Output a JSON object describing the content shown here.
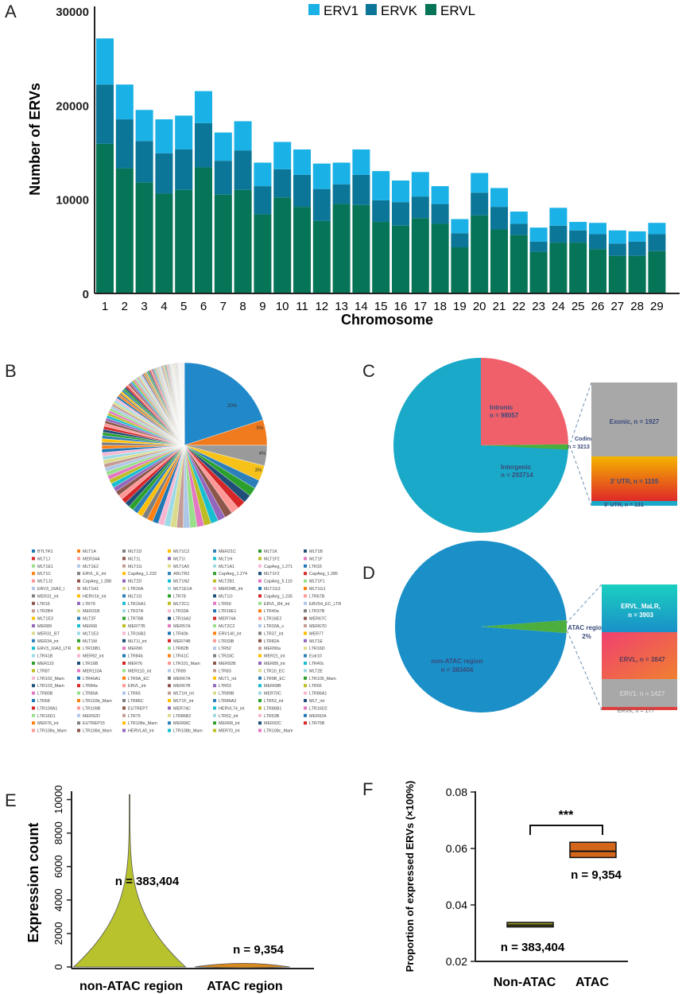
{
  "panels": {
    "a": "A",
    "b": "B",
    "c": "C",
    "d": "D",
    "e": "E",
    "f": "F"
  },
  "colors": {
    "erv1": "#1ab1e6",
    "ervk": "#0b7697",
    "ervl": "#067456",
    "violin_nonatac": "#b8c22c",
    "violin_atac": "#d98a1f",
    "box_nonatac": "#9a9a2a",
    "box_atac": "#d4661c"
  },
  "chart_data": [
    {
      "id": "A",
      "type": "bar",
      "stacked": true,
      "xlabel": "Chromosome",
      "ylabel": "Number of ERVs",
      "ylim": [
        0,
        30000
      ],
      "yticks": [
        "0",
        "10000",
        "20000",
        "30000"
      ],
      "legend_position": "top-right",
      "categories": [
        "1",
        "2",
        "3",
        "4",
        "5",
        "6",
        "7",
        "8",
        "9",
        "10",
        "11",
        "12",
        "13",
        "14",
        "15",
        "16",
        "17",
        "18",
        "19",
        "20",
        "21",
        "22",
        "23",
        "24",
        "25",
        "26",
        "27",
        "28",
        "29"
      ],
      "series": [
        {
          "name": "ERVL",
          "values": [
            15900,
            13300,
            11800,
            10600,
            11000,
            13400,
            10500,
            11000,
            8400,
            10200,
            9200,
            7700,
            9500,
            9400,
            7600,
            7200,
            8000,
            7400,
            4900,
            8300,
            6800,
            6200,
            4400,
            5400,
            5400,
            4700,
            4000,
            4000,
            4500
          ]
        },
        {
          "name": "ERVK",
          "values": [
            6300,
            5200,
            4400,
            4300,
            4300,
            4700,
            3600,
            4200,
            3000,
            3000,
            3400,
            3400,
            2100,
            3200,
            2300,
            2500,
            2300,
            2100,
            1500,
            2400,
            2400,
            1200,
            1100,
            1800,
            1300,
            1600,
            1300,
            1500,
            1800
          ]
        },
        {
          "name": "ERV1",
          "values": [
            4900,
            3700,
            3300,
            3600,
            3600,
            3400,
            3000,
            3100,
            2500,
            2900,
            2700,
            2700,
            2300,
            2700,
            3100,
            2300,
            2600,
            1900,
            1500,
            2100,
            2000,
            1300,
            1500,
            1900,
            900,
            1200,
            1400,
            1100,
            1200
          ]
        }
      ]
    },
    {
      "id": "B",
      "type": "pie",
      "slice_labels": [
        "20%",
        "5%",
        "4%",
        "3%"
      ],
      "legend": [
        "BTLTR1",
        "MLT1A",
        "MLT1D",
        "MLT1C2",
        "MER21C",
        "MLT1K",
        "MLT1B",
        "MLT1J",
        "MER34A",
        "MLT1L",
        "MLT1I",
        "MLT1H",
        "MLT1F2",
        "MLT1F",
        "MLT1E1",
        "MLT1E2",
        "MLT1G",
        "MLT1A0",
        "MLT1A1",
        "CapAeg_1.271",
        "LTR33",
        "MLT1C",
        "ERVL_E_int",
        "CapAeg_1.232",
        "ARLTR2",
        "CapAeg_1.274",
        "MLT1F2",
        "CapAeg_1.285",
        "MLT1J2",
        "CapAeg_1.288",
        "MLT2D",
        "MLT1N2",
        "MLT2B1",
        "CapAeg_5.110",
        "MLT1F1",
        "ERV3_16A3_I",
        "MLT1H1",
        "LTR16A",
        "MLT1E1A",
        "MER34B_int",
        "MLT1G3",
        "MLT1G1",
        "MER31_int",
        "HERV16_int",
        "MLT1G",
        "LTR78",
        "MLT1O",
        "CapAeg_1.235",
        "LTR67B",
        "LTR16",
        "LTR79",
        "LTR16A1",
        "MLT2C1",
        "LTR50",
        "ERVL_B4_int",
        "ERV54_EC_LTR",
        "LTR2B4",
        "MER31B",
        "LTR37A",
        "LTR33A",
        "LTR16E1",
        "LTR40a",
        "LTR37B",
        "MLT1E3",
        "MLT2F",
        "LTR78B",
        "LTR16A2",
        "MER74A",
        "LTR16E2",
        "MER67C",
        "MER89",
        "MER68",
        "MER77B",
        "MER57A",
        "MLT2C2",
        "LTR33A_v",
        "MER67D",
        "MER31_BT",
        "MLT1E3",
        "LTR16B2",
        "LTR40b",
        "ERV140_int",
        "LTR37_int",
        "MER77",
        "MER34_int",
        "MLT1M",
        "MLT1I_int",
        "MER74B",
        "LTR33B",
        "LTR82A",
        "MLT1E",
        "ERV3_16A3_LTR",
        "LTR16B1",
        "MER90",
        "LTR82B",
        "LTR52",
        "MER90a",
        "LTR16D",
        "LTR41B",
        "MER92_int",
        "LTR84b",
        "LTR41C",
        "LTR33C",
        "MER21_int",
        "Eutr10",
        "MER110",
        "LTR16B",
        "MER76",
        "LTR101_Mam",
        "MER92B",
        "MER89_int",
        "LTR40c",
        "LTR87",
        "MER110A",
        "MER110_int",
        "LTR89",
        "LTR83",
        "LTR10_EC",
        "MLT2E",
        "LTR102_Mam",
        "LTR40A1",
        "LTR9A_EC",
        "MER67A",
        "MLT1_int",
        "LTR9B_EC",
        "LTR105_Mam",
        "LTR103_Mam",
        "LTR84a",
        "ERVL_int",
        "MER67B",
        "LTR53",
        "MER68B",
        "LTR55",
        "LTR80B",
        "LTR80A",
        "LTR65",
        "MLT1H_int",
        "LTR89B",
        "MER70C",
        "LTR86A1",
        "LTR68",
        "LTR103b_Mam",
        "LTR86C",
        "MLT1F_int",
        "LTR86A2",
        "LTR53_int",
        "MLT_int",
        "LTR109A1",
        "LTR109B",
        "EUTREP7",
        "MER74C",
        "HERVL74_int",
        "LTR86B1",
        "LTR16D2",
        "LTR16D1",
        "MER92D",
        "LTR75",
        "LTR86B2",
        "LTR52_int",
        "LTR53B",
        "MER92A",
        "MER76_int",
        "EUTREP15",
        "LTR108e_Mam",
        "MER68C",
        "MER68_int",
        "MER92C",
        "LTR75B",
        "LTR108a_Mam",
        "LTR108d_Mam",
        "HERVL40_int",
        "LTR108b_Mam",
        "MER70_int",
        "LTR108c_Mam"
      ]
    },
    {
      "id": "C",
      "type": "pie",
      "slices": [
        {
          "label": "Intergenic",
          "n": "n = 293714",
          "value": 293714
        },
        {
          "label": "Intronic",
          "n": "n = 98057",
          "value": 98057
        },
        {
          "label": "Coding",
          "n": "n = 3213",
          "value": 3213
        }
      ],
      "breakdown": [
        {
          "label": "Exonic, n = 1927",
          "value": 1927
        },
        {
          "label": "3' UTR, n = 1155",
          "value": 1155
        },
        {
          "label": "5' UTR, n = 131",
          "value": 131
        }
      ]
    },
    {
      "id": "D",
      "type": "pie",
      "slices": [
        {
          "label": "non-ATAC region",
          "n": "n = 383404",
          "value": 383404
        },
        {
          "label": "ATAC region",
          "pct": "2%",
          "value": 9354
        }
      ],
      "breakdown": [
        {
          "label": "ERVL_MaLR,",
          "n": "n = 3903",
          "value": 3903
        },
        {
          "label": "ERVL, n = 3847",
          "value": 3847
        },
        {
          "label": "ERV1, n = 1427",
          "value": 1427
        },
        {
          "label": "ERVK, n = 177",
          "value": 177
        }
      ]
    },
    {
      "id": "E",
      "type": "violin",
      "ylabel": "Expression count",
      "ylim": [
        0,
        10500
      ],
      "yticks": [
        "0",
        "2000",
        "4000",
        "6000",
        "8000",
        "10000"
      ],
      "groups": [
        {
          "name": "non-ATAC region",
          "n": "n = 383,404",
          "max": 10300
        },
        {
          "name": "ATAC region",
          "n": "n = 9,354",
          "max": 250
        }
      ]
    },
    {
      "id": "F",
      "type": "box",
      "ylabel": "Proportion of expressed ERVs (×100%)",
      "ylim": [
        0.02,
        0.08
      ],
      "yticks": [
        "0.02",
        "0.04",
        "0.06",
        "0.08"
      ],
      "significance": "***",
      "groups": [
        {
          "name": "Non-ATAC",
          "n": "n = 383,404",
          "q1": 0.0322,
          "median": 0.0328,
          "q3": 0.0338
        },
        {
          "name": "ATAC",
          "n": "n = 9,354",
          "q1": 0.0568,
          "median": 0.059,
          "q3": 0.0622
        }
      ]
    }
  ]
}
